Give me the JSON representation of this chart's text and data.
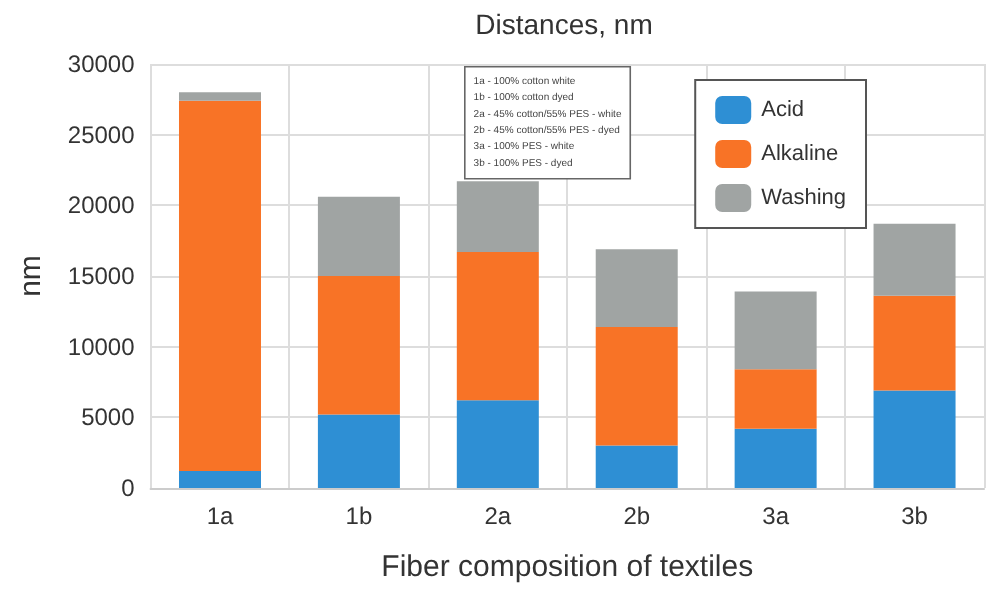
{
  "chart_data": {
    "type": "bar",
    "title": "Distances, nm",
    "xlabel": "Fiber composition of textiles",
    "ylabel": "nm",
    "categories": [
      "1a",
      "1b",
      "2a",
      "2b",
      "3a",
      "3b"
    ],
    "stacked": true,
    "series": [
      {
        "name": "Acid",
        "color": "#2e8fd4",
        "values": [
          1200,
          5200,
          6200,
          3000,
          4200,
          6900
        ]
      },
      {
        "name": "Alkaline",
        "color": "#f87326",
        "values": [
          26200,
          9800,
          10500,
          8400,
          4200,
          6700
        ]
      },
      {
        "name": "Washing",
        "color": "#a0a4a3",
        "values": [
          600,
          5600,
          5000,
          5500,
          5500,
          5100
        ]
      }
    ],
    "ylim": [
      0,
      30000
    ],
    "yticks": [
      0,
      5000,
      10000,
      15000,
      20000,
      25000,
      30000
    ],
    "grid": true,
    "legend": "top right",
    "annotations": [
      "1a - 100% cotton white\n1b - 100% cotton dyed\n2a - 45% cotton/55% PES - white\n2b - 45% cotton/55% PES - dyed\n3a - 100% PES - white\n3b - 100% PES - dyed"
    ]
  }
}
